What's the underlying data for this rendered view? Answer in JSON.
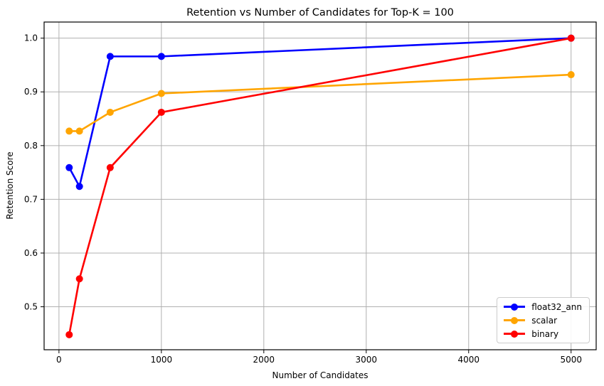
{
  "chart_data": {
    "type": "line",
    "title": "Retention vs Number of Candidates for Top-K = 100",
    "xlabel": "Number of Candidates",
    "ylabel": "Retention Score",
    "x": [
      100,
      200,
      500,
      1000,
      5000
    ],
    "series": [
      {
        "name": "float32_ann",
        "color": "#0000ff",
        "values": [
          0.759,
          0.724,
          0.966,
          0.966,
          1.0
        ]
      },
      {
        "name": "scalar",
        "color": "#ffa500",
        "values": [
          0.827,
          0.827,
          0.862,
          0.897,
          0.932
        ]
      },
      {
        "name": "binary",
        "color": "#ff0000",
        "values": [
          0.448,
          0.552,
          0.759,
          0.862,
          1.0
        ]
      }
    ],
    "xlim": [
      -145,
      5245
    ],
    "ylim": [
      0.42,
      1.03
    ],
    "xticks": [
      0,
      1000,
      2000,
      3000,
      4000,
      5000
    ],
    "xtick_labels": [
      "0",
      "1000",
      "2000",
      "3000",
      "4000",
      "5000"
    ],
    "yticks": [
      0.5,
      0.6,
      0.7,
      0.8,
      0.9,
      1.0
    ],
    "ytick_labels": [
      "0.5",
      "0.6",
      "0.7",
      "0.8",
      "0.9",
      "1.0"
    ],
    "grid": true,
    "legend_position": "lower right",
    "colors": {
      "grid": "#b0b0b0",
      "spine": "#000000",
      "background": "#ffffff"
    }
  }
}
